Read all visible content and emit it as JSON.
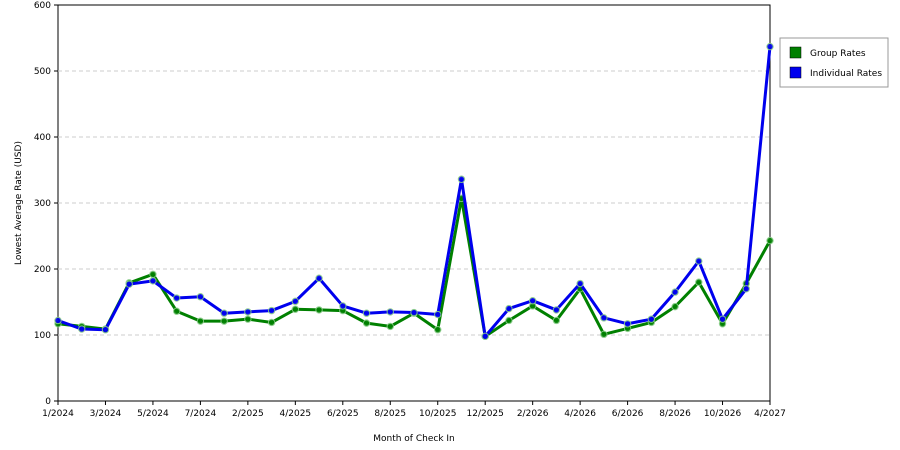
{
  "chart_data": {
    "type": "line",
    "x_label": "Month of Check In",
    "y_label": "Lowest Average Rate (USD)",
    "categories": [
      "1/2024",
      null,
      "3/2024",
      null,
      "5/2024",
      null,
      "7/2024",
      null,
      "2/2025",
      null,
      "4/2025",
      null,
      "6/2025",
      null,
      "8/2025",
      null,
      "10/2025",
      null,
      "12/2025",
      null,
      "2/2026",
      null,
      "4/2026",
      null,
      "6/2026",
      null,
      "8/2026",
      null,
      "10/2026",
      null,
      "4/2027"
    ],
    "series": [
      {
        "name": "Group Rates",
        "color": "#008000",
        "values": [
          117,
          113,
          109,
          179,
          192,
          136,
          121,
          121,
          124,
          119,
          139,
          138,
          137,
          118,
          113,
          133,
          108,
          307,
          98,
          122,
          144,
          122,
          170,
          101,
          110,
          119,
          143,
          180,
          117,
          178,
          243
        ]
      },
      {
        "name": "Individual Rates",
        "color": "#0000ee",
        "values": [
          122,
          109,
          108,
          177,
          182,
          156,
          158,
          133,
          135,
          137,
          151,
          186,
          144,
          133,
          135,
          134,
          131,
          336,
          98,
          140,
          152,
          138,
          178,
          126,
          117,
          124,
          165,
          212,
          124,
          170,
          537
        ]
      }
    ],
    "ylim": [
      0,
      600
    ],
    "yticks": [
      0,
      100,
      200,
      300,
      400,
      500,
      600
    ],
    "grid": true,
    "legend": "right"
  }
}
